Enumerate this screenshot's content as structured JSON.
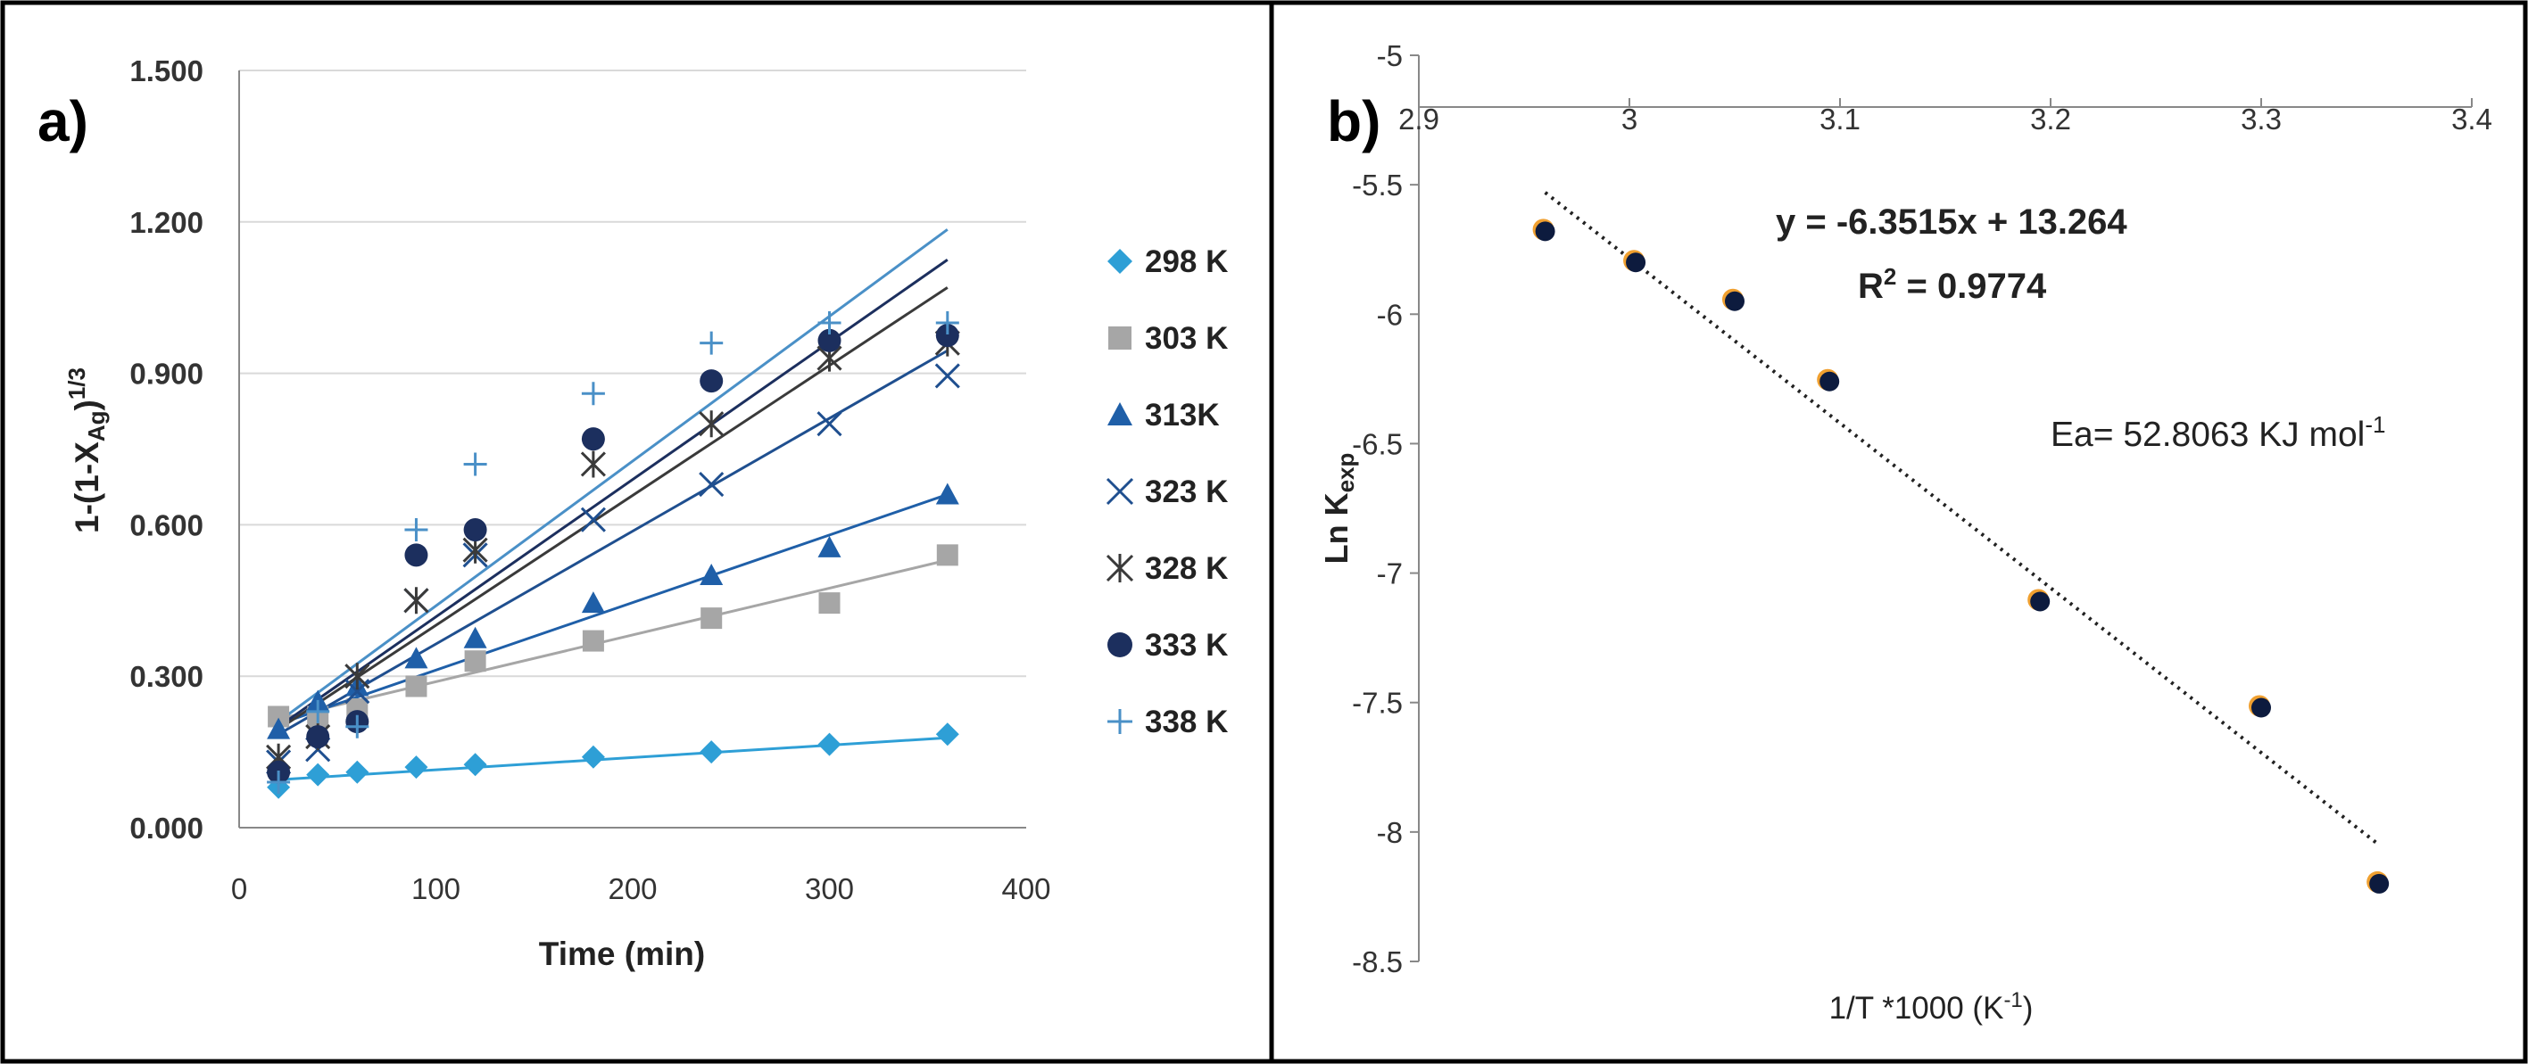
{
  "chart_data": [
    {
      "panel_label": "a)",
      "type": "scatter",
      "xlabel": "Time (min)",
      "ylabel": {
        "prefix": "1-(1-X",
        "sub": "Ag",
        "suffix": ")",
        "sup": "1/3"
      },
      "xlim": [
        0,
        400
      ],
      "ylim": [
        0,
        1.5
      ],
      "xticks": [
        0,
        100,
        200,
        300,
        400
      ],
      "yticks": [
        "0.000",
        "0.300",
        "0.600",
        "0.900",
        "1.200",
        "1.500"
      ],
      "x": [
        20,
        40,
        60,
        90,
        120,
        180,
        240,
        300,
        360
      ],
      "legend_position": "right",
      "series": [
        {
          "name": "298 K",
          "marker": "diamond",
          "color": "#2e9fd6",
          "values": [
            0.08,
            0.105,
            0.11,
            0.12,
            0.125,
            0.14,
            0.15,
            0.165,
            0.185
          ],
          "fit": [
            [
              20,
              0.095
            ],
            [
              360,
              0.178
            ]
          ]
        },
        {
          "name": "303 K",
          "marker": "square",
          "color": "#a6a6a6",
          "values": [
            0.22,
            0.22,
            0.235,
            0.28,
            0.33,
            0.37,
            0.415,
            0.445,
            0.54
          ],
          "fit": [
            [
              20,
              0.215
            ],
            [
              360,
              0.53
            ]
          ]
        },
        {
          "name": "313K",
          "marker": "triangle",
          "color": "#1f5fa8",
          "values": [
            0.195,
            0.25,
            0.28,
            0.335,
            0.375,
            0.445,
            0.5,
            0.555,
            0.66
          ],
          "fit": [
            [
              20,
              0.205
            ],
            [
              360,
              0.66
            ]
          ]
        },
        {
          "name": "323 K",
          "marker": "x",
          "color": "#1f4f8f",
          "values": [
            0.13,
            0.155,
            0.27,
            0.45,
            0.54,
            0.61,
            0.68,
            0.8,
            0.895
          ],
          "fit": [
            [
              20,
              0.185
            ],
            [
              360,
              0.945
            ]
          ]
        },
        {
          "name": "328 K",
          "marker": "star",
          "color": "#3a3a3a",
          "values": [
            0.14,
            0.18,
            0.3,
            0.45,
            0.55,
            0.72,
            0.8,
            0.93,
            0.96
          ],
          "fit": [
            [
              20,
              0.195
            ],
            [
              360,
              1.07
            ]
          ]
        },
        {
          "name": "333 K",
          "marker": "circle",
          "color": "#1c2f5e",
          "values": [
            0.11,
            0.18,
            0.21,
            0.54,
            0.59,
            0.77,
            0.885,
            0.965,
            0.975
          ],
          "fit": [
            [
              20,
              0.2
            ],
            [
              360,
              1.125
            ]
          ]
        },
        {
          "name": "338 K",
          "marker": "plus",
          "color": "#4a90c7",
          "values": [
            0.09,
            0.23,
            0.2,
            0.59,
            0.72,
            0.86,
            0.96,
            1.0,
            1.0
          ],
          "fit": [
            [
              20,
              0.21
            ],
            [
              360,
              1.185
            ]
          ]
        }
      ]
    },
    {
      "panel_label": "b)",
      "type": "scatter",
      "xlabel": {
        "prefix": "1/T *1000 (K",
        "sup": "-1",
        "suffix": ")"
      },
      "ylabel": {
        "prefix": "Ln K",
        "sub": "exp"
      },
      "xlim": [
        2.9,
        3.4
      ],
      "ylim": [
        -8.5,
        -5
      ],
      "xticks": [
        "2.9",
        "3",
        "3.1",
        "3.2",
        "3.3",
        "3.4"
      ],
      "yticks": [
        "-5",
        "-5.5",
        "-6",
        "-6.5",
        "-7",
        "-7.5",
        "-8",
        "-8.5"
      ],
      "x_axis_position": "top",
      "points": {
        "x": [
          2.96,
          3.003,
          3.05,
          3.095,
          3.195,
          3.3,
          3.356
        ],
        "y": [
          -5.68,
          -5.8,
          -5.95,
          -6.26,
          -7.11,
          -7.52,
          -8.2
        ],
        "color": "#0d1b3e",
        "edge_color": "#f0a030"
      },
      "trendline": {
        "style": "dotted",
        "from": [
          2.96,
          -5.53
        ],
        "to": [
          3.356,
          -8.05
        ]
      },
      "annotations": {
        "equation": "y = -6.3515x + 13.264",
        "r2": {
          "prefix": "R",
          "sup": "2",
          "suffix": " = 0.9774"
        },
        "ea": {
          "prefix": "Ea= 52.8063 KJ mol",
          "sup": "-1"
        }
      }
    }
  ]
}
